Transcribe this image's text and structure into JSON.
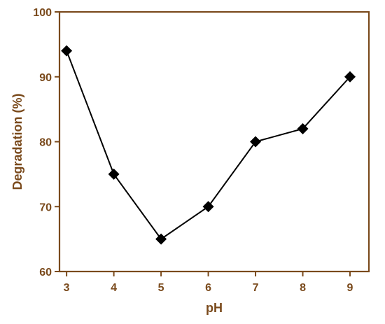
{
  "colors": {
    "axis": "#7a4a1c",
    "series": "#000000"
  },
  "chart_data": {
    "type": "line",
    "title": "",
    "xlabel": "pH",
    "ylabel": "Degradation (%)",
    "xlim": [
      2.85,
      9.4
    ],
    "ylim": [
      60,
      100
    ],
    "xticks": [
      3,
      4,
      5,
      6,
      7,
      8,
      9
    ],
    "yticks": [
      60,
      70,
      80,
      90,
      100
    ],
    "grid": false,
    "legend": "none",
    "marker": "diamond",
    "series": [
      {
        "x": [
          3,
          4,
          5,
          6,
          7,
          8,
          9
        ],
        "y": [
          94,
          75,
          65,
          70,
          80,
          82,
          90
        ]
      }
    ]
  }
}
